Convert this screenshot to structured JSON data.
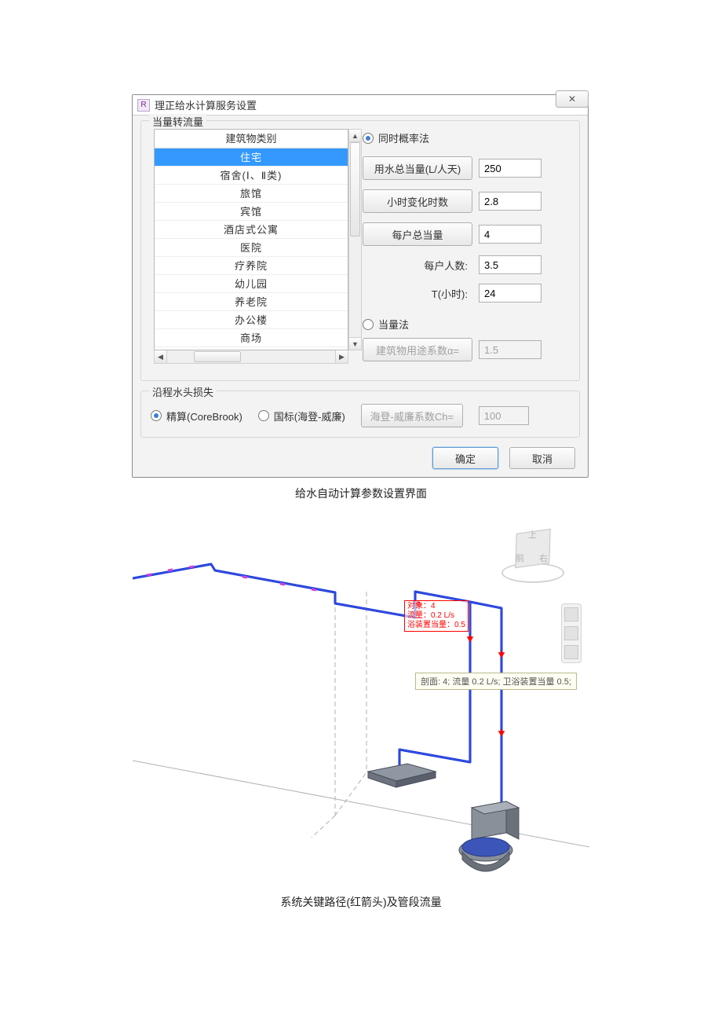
{
  "dialog": {
    "title": "理正给水计算服务设置",
    "close_glyph": "✕"
  },
  "equiv_group": {
    "legend": "当量转流量",
    "list_header": "建筑物类别",
    "items": [
      "住宅",
      "宿舍(Ⅰ、Ⅱ类)",
      "旅馆",
      "宾馆",
      "酒店式公寓",
      "医院",
      "疗养院",
      "幼儿园",
      "养老院",
      "办公楼",
      "商场"
    ],
    "selected_index": 0
  },
  "method1": {
    "label": "同时概率法",
    "checked": true,
    "param1_btn": "用水总当量(L/人天)",
    "param1_val": "250",
    "param2_btn": "小时变化时数",
    "param2_val": "2.8",
    "param3_btn": "每户总当量",
    "param3_val": "4",
    "param4_label": "每户人数:",
    "param4_val": "3.5",
    "param5_label": "T(小时):",
    "param5_val": "24"
  },
  "method2": {
    "label": "当量法",
    "checked": false,
    "coef_btn": "建筑物用途系数α=",
    "coef_val": "1.5"
  },
  "loss_group": {
    "legend": "沿程水头损失",
    "opt1_label": "精算(CoreBrook)",
    "opt1_checked": true,
    "opt2_label": "国标(海登-威廉)",
    "opt2_checked": false,
    "hw_btn": "海登-威廉系数Ch=",
    "hw_val": "100"
  },
  "footer": {
    "ok": "确定",
    "cancel": "取消"
  },
  "caption1": "给水自动计算参数设置界面",
  "fig2": {
    "red_box_line1": "对象：4",
    "red_box_line2": "流量：0.2 L/s",
    "red_box_line3": "浴装置当量：0.5",
    "tooltip": "剖面: 4; 流量 0.2 L/s; 卫浴装置当量 0.5;",
    "cube_top": "上",
    "cube_front": "前",
    "cube_right": "右"
  },
  "caption2": "系统关键路径(红箭头)及管段流量",
  "colors": {
    "selection": "#3399ff",
    "pipe_main": "#1030d0",
    "pipe_accent": "#d040e0",
    "red": "#ff0000",
    "grey_line": "#aeb2b6"
  }
}
